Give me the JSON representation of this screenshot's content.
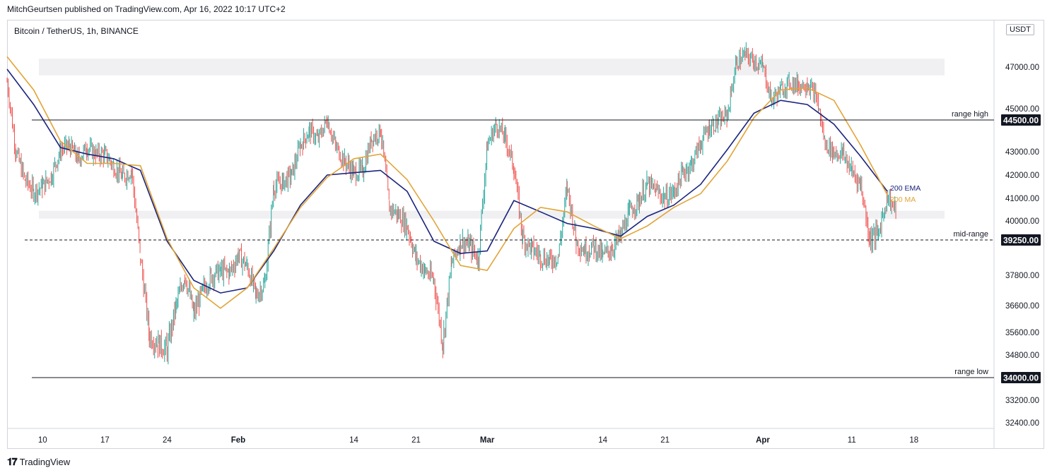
{
  "header": {
    "published": "MitchGeurtsen published on TradingView.com, Apr 16, 2022 10:17 UTC+2"
  },
  "symbol": {
    "title": "Bitcoin / TetherUS, 1h, BINANCE"
  },
  "unit": "USDT",
  "footer": {
    "brand": "TradingView",
    "logo_icon": "tradingview-logo-icon"
  },
  "chart_data": {
    "type": "candlestick",
    "title": "Bitcoin / TetherUS, 1h, BINANCE",
    "y_unit": "USDT",
    "y_ticks": [
      47000,
      45000,
      43000,
      42000,
      41000,
      40000,
      37800,
      36600,
      35600,
      34800,
      33200,
      32400
    ],
    "x_ticks": [
      "10",
      "17",
      "24",
      "Feb",
      "14",
      "21",
      "Mar",
      "14",
      "21",
      "Apr",
      "11",
      "18"
    ],
    "x_tick_dates": [
      "2022-01-10",
      "2022-01-17",
      "2022-01-24",
      "2022-02-01",
      "2022-02-14",
      "2022-02-21",
      "2022-03-01",
      "2022-03-14",
      "2022-03-21",
      "2022-04-01",
      "2022-04-11",
      "2022-04-18"
    ],
    "x_range": [
      "2022-01-06",
      "2022-04-27"
    ],
    "levels": [
      {
        "label": "range high",
        "value": 44500,
        "value_text": "44500.00",
        "style": "solid"
      },
      {
        "label": "mid-range",
        "value": 39250,
        "value_text": "39250.00",
        "style": "dashed"
      },
      {
        "label": "range low",
        "value": 34000,
        "value_text": "34000.00",
        "style": "solid"
      }
    ],
    "zones": [
      {
        "from": 46600,
        "to": 47400
      },
      {
        "from": 40100,
        "to": 40450
      }
    ],
    "ema_200": {
      "name": "200 EMA",
      "color": "#1a237e",
      "points": [
        [
          "2022-01-06",
          46900
        ],
        [
          "2022-01-09",
          45200
        ],
        [
          "2022-01-12",
          43200
        ],
        [
          "2022-01-15",
          42900
        ],
        [
          "2022-01-18",
          42700
        ],
        [
          "2022-01-21",
          42200
        ],
        [
          "2022-01-24",
          39200
        ],
        [
          "2022-01-27",
          37600
        ],
        [
          "2022-01-30",
          37100
        ],
        [
          "2022-02-02",
          37300
        ],
        [
          "2022-02-05",
          38800
        ],
        [
          "2022-02-08",
          40700
        ],
        [
          "2022-02-11",
          42000
        ],
        [
          "2022-02-14",
          42100
        ],
        [
          "2022-02-17",
          42200
        ],
        [
          "2022-02-20",
          41300
        ],
        [
          "2022-02-23",
          39200
        ],
        [
          "2022-02-26",
          38700
        ],
        [
          "2022-03-01",
          38800
        ],
        [
          "2022-03-04",
          40900
        ],
        [
          "2022-03-07",
          40400
        ],
        [
          "2022-03-10",
          39900
        ],
        [
          "2022-03-13",
          39700
        ],
        [
          "2022-03-16",
          39400
        ],
        [
          "2022-03-19",
          40200
        ],
        [
          "2022-03-22",
          40700
        ],
        [
          "2022-03-25",
          41600
        ],
        [
          "2022-03-28",
          43100
        ],
        [
          "2022-03-31",
          44800
        ],
        [
          "2022-04-03",
          45400
        ],
        [
          "2022-04-06",
          45200
        ],
        [
          "2022-04-09",
          44300
        ],
        [
          "2022-04-12",
          42800
        ],
        [
          "2022-04-15",
          41300
        ]
      ]
    },
    "ma_200": {
      "name": "200 MA",
      "color": "#e1a437",
      "points": [
        [
          "2022-01-06",
          47500
        ],
        [
          "2022-01-09",
          45900
        ],
        [
          "2022-01-12",
          43500
        ],
        [
          "2022-01-15",
          42500
        ],
        [
          "2022-01-18",
          42500
        ],
        [
          "2022-01-21",
          42400
        ],
        [
          "2022-01-24",
          39300
        ],
        [
          "2022-01-27",
          37300
        ],
        [
          "2022-01-30",
          36500
        ],
        [
          "2022-02-02",
          37300
        ],
        [
          "2022-02-05",
          38900
        ],
        [
          "2022-02-08",
          40600
        ],
        [
          "2022-02-11",
          41900
        ],
        [
          "2022-02-14",
          42700
        ],
        [
          "2022-02-17",
          42900
        ],
        [
          "2022-02-20",
          41800
        ],
        [
          "2022-02-23",
          40000
        ],
        [
          "2022-02-26",
          38200
        ],
        [
          "2022-03-01",
          38000
        ],
        [
          "2022-03-04",
          39700
        ],
        [
          "2022-03-07",
          40600
        ],
        [
          "2022-03-10",
          40400
        ],
        [
          "2022-03-13",
          39800
        ],
        [
          "2022-03-16",
          39300
        ],
        [
          "2022-03-19",
          39800
        ],
        [
          "2022-03-22",
          40600
        ],
        [
          "2022-03-25",
          41200
        ],
        [
          "2022-03-28",
          42600
        ],
        [
          "2022-03-31",
          44600
        ],
        [
          "2022-04-03",
          45900
        ],
        [
          "2022-04-06",
          46000
        ],
        [
          "2022-04-09",
          45400
        ],
        [
          "2022-04-12",
          43300
        ],
        [
          "2022-04-15",
          41150
        ]
      ]
    },
    "price_path": [
      [
        "2022-01-06",
        46300
      ],
      [
        "2022-01-07",
        43000
      ],
      [
        "2022-01-08",
        41800
      ],
      [
        "2022-01-09",
        41300
      ],
      [
        "2022-01-10",
        41500
      ],
      [
        "2022-01-11",
        42000
      ],
      [
        "2022-01-12",
        43100
      ],
      [
        "2022-01-13",
        43300
      ],
      [
        "2022-01-14",
        42700
      ],
      [
        "2022-01-15",
        43200
      ],
      [
        "2022-01-16",
        42900
      ],
      [
        "2022-01-17",
        42900
      ],
      [
        "2022-01-18",
        42400
      ],
      [
        "2022-01-19",
        41900
      ],
      [
        "2022-01-20",
        42200
      ],
      [
        "2022-01-21",
        38500
      ],
      [
        "2022-01-22",
        35500
      ],
      [
        "2022-01-23",
        35200
      ],
      [
        "2022-01-24",
        35000
      ],
      [
        "2022-01-25",
        36600
      ],
      [
        "2022-01-26",
        37800
      ],
      [
        "2022-01-27",
        36300
      ],
      [
        "2022-01-28",
        37200
      ],
      [
        "2022-01-29",
        37800
      ],
      [
        "2022-01-30",
        38000
      ],
      [
        "2022-01-31",
        37900
      ],
      [
        "2022-02-01",
        38600
      ],
      [
        "2022-02-02",
        38200
      ],
      [
        "2022-02-03",
        37000
      ],
      [
        "2022-02-04",
        37500
      ],
      [
        "2022-02-05",
        41500
      ],
      [
        "2022-02-06",
        41700
      ],
      [
        "2022-02-07",
        42000
      ],
      [
        "2022-02-08",
        43300
      ],
      [
        "2022-02-09",
        44000
      ],
      [
        "2022-02-10",
        43600
      ],
      [
        "2022-02-11",
        44500
      ],
      [
        "2022-02-12",
        43200
      ],
      [
        "2022-02-13",
        42600
      ],
      [
        "2022-02-14",
        42100
      ],
      [
        "2022-02-15",
        42200
      ],
      [
        "2022-02-16",
        43600
      ],
      [
        "2022-02-17",
        44000
      ],
      [
        "2022-02-18",
        40600
      ],
      [
        "2022-02-19",
        40300
      ],
      [
        "2022-02-20",
        39800
      ],
      [
        "2022-02-21",
        38500
      ],
      [
        "2022-02-22",
        38000
      ],
      [
        "2022-02-23",
        37600
      ],
      [
        "2022-02-24",
        35200
      ],
      [
        "2022-02-25",
        38300
      ],
      [
        "2022-02-26",
        39200
      ],
      [
        "2022-02-27",
        39000
      ],
      [
        "2022-02-28",
        38500
      ],
      [
        "2022-03-01",
        43300
      ],
      [
        "2022-03-02",
        44300
      ],
      [
        "2022-03-03",
        43700
      ],
      [
        "2022-03-04",
        42300
      ],
      [
        "2022-03-05",
        39300
      ],
      [
        "2022-03-06",
        38900
      ],
      [
        "2022-03-07",
        38600
      ],
      [
        "2022-03-08",
        38400
      ],
      [
        "2022-03-09",
        38600
      ],
      [
        "2022-03-10",
        41500
      ],
      [
        "2022-03-11",
        39200
      ],
      [
        "2022-03-12",
        38800
      ],
      [
        "2022-03-13",
        39000
      ],
      [
        "2022-03-14",
        38600
      ],
      [
        "2022-03-15",
        38900
      ],
      [
        "2022-03-16",
        39400
      ],
      [
        "2022-03-17",
        40400
      ],
      [
        "2022-03-18",
        40900
      ],
      [
        "2022-03-19",
        41600
      ],
      [
        "2022-03-20",
        41300
      ],
      [
        "2022-03-21",
        41000
      ],
      [
        "2022-03-22",
        41300
      ],
      [
        "2022-03-23",
        42100
      ],
      [
        "2022-03-24",
        42500
      ],
      [
        "2022-03-25",
        43400
      ],
      [
        "2022-03-26",
        44200
      ],
      [
        "2022-03-27",
        44400
      ],
      [
        "2022-03-28",
        44700
      ],
      [
        "2022-03-29",
        47200
      ],
      [
        "2022-03-30",
        47600
      ],
      [
        "2022-03-31",
        47300
      ],
      [
        "2022-04-01",
        47000
      ],
      [
        "2022-04-02",
        45400
      ],
      [
        "2022-04-03",
        45900
      ],
      [
        "2022-04-04",
        46300
      ],
      [
        "2022-04-05",
        46100
      ],
      [
        "2022-04-06",
        46200
      ],
      [
        "2022-04-07",
        45600
      ],
      [
        "2022-04-08",
        43400
      ],
      [
        "2022-04-09",
        43000
      ],
      [
        "2022-04-10",
        42900
      ],
      [
        "2022-04-11",
        42200
      ],
      [
        "2022-04-12",
        41600
      ],
      [
        "2022-04-13",
        39300
      ],
      [
        "2022-04-14",
        39500
      ],
      [
        "2022-04-15",
        41100
      ],
      [
        "2022-04-16",
        40400
      ]
    ]
  }
}
